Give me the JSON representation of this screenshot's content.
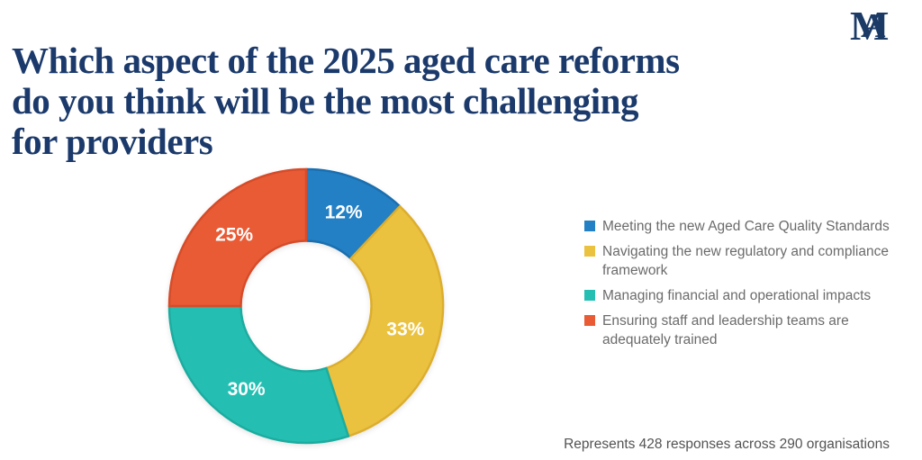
{
  "header": {
    "title_lines": [
      "Which aspect of the 2025 aged care reforms",
      "do you think will be the most challenging",
      "for providers"
    ],
    "title_color": "#1b3a6b",
    "logo": {
      "m": "M",
      "a": "A",
      "color": "#1b3a66"
    }
  },
  "chart_data": {
    "type": "pie",
    "subtype": "donut",
    "title": "Which aspect of the 2025 aged care reforms do you think will be the most challenging for providers",
    "categories": [
      "Meeting the new Aged Care Quality Standards",
      "Navigating the new regulatory and compliance framework",
      "Managing financial and operational impacts",
      "Ensuring staff and leadership teams are adequately trained"
    ],
    "values": [
      12,
      33,
      30,
      25
    ],
    "unit": "%",
    "data_labels": [
      "12%",
      "33%",
      "30%",
      "25%"
    ],
    "colors": [
      "#2480c4",
      "#ebc23f",
      "#24bfb2",
      "#e95b35"
    ],
    "edge_colors": [
      "#1a6fb0",
      "#dcae2e",
      "#1caca0",
      "#d54c2a"
    ],
    "label_color": "#ffffff",
    "start_angle_deg": 0,
    "direction": "clockwise",
    "legend_position": "right"
  },
  "footer": {
    "note": "Represents 428 responses across 290 organisations"
  }
}
